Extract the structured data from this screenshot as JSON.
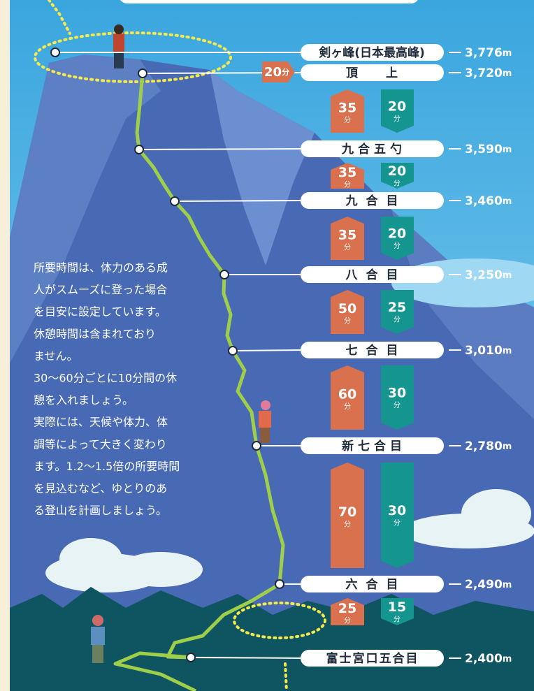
{
  "summit_time": "20",
  "unit_time": "分",
  "unit_alt": "m",
  "stations": [
    {
      "name": "剣ヶ峰(日本最高峰)",
      "altitude": "3,776"
    },
    {
      "name": "頂上",
      "altitude": "3,720"
    },
    {
      "name": "九合五勺",
      "altitude": "3,590"
    },
    {
      "name": "九合目",
      "altitude": "3,460"
    },
    {
      "name": "八合目",
      "altitude": "3,250"
    },
    {
      "name": "七合目",
      "altitude": "3,010"
    },
    {
      "name": "新七合目",
      "altitude": "2,780"
    },
    {
      "name": "六合目",
      "altitude": "2,490"
    },
    {
      "name": "富士宮口五合目",
      "altitude": "2,400"
    }
  ],
  "segments": [
    {
      "up": "35",
      "down": "20"
    },
    {
      "up": "35",
      "down": "20"
    },
    {
      "up": "35",
      "down": "20"
    },
    {
      "up": "50",
      "down": "25"
    },
    {
      "up": "60",
      "down": "30"
    },
    {
      "up": "70",
      "down": "30"
    },
    {
      "up": "25",
      "down": "15"
    }
  ],
  "note": [
    "所要時間は、体力のある成",
    "人がスムーズに登った場合",
    "を目安に設定しています。",
    "休憩時間は含まれており",
    "ません。",
    "30〜60分ごとに10分間の休",
    "憩を入れましょう。",
    "実際には、天候や体力、体",
    "調等によって大きく変わり",
    "ます。1.2〜1.5倍の所要時間",
    "を見込むなど、ゆとりのあ",
    "る登山を計画しましょう。"
  ]
}
